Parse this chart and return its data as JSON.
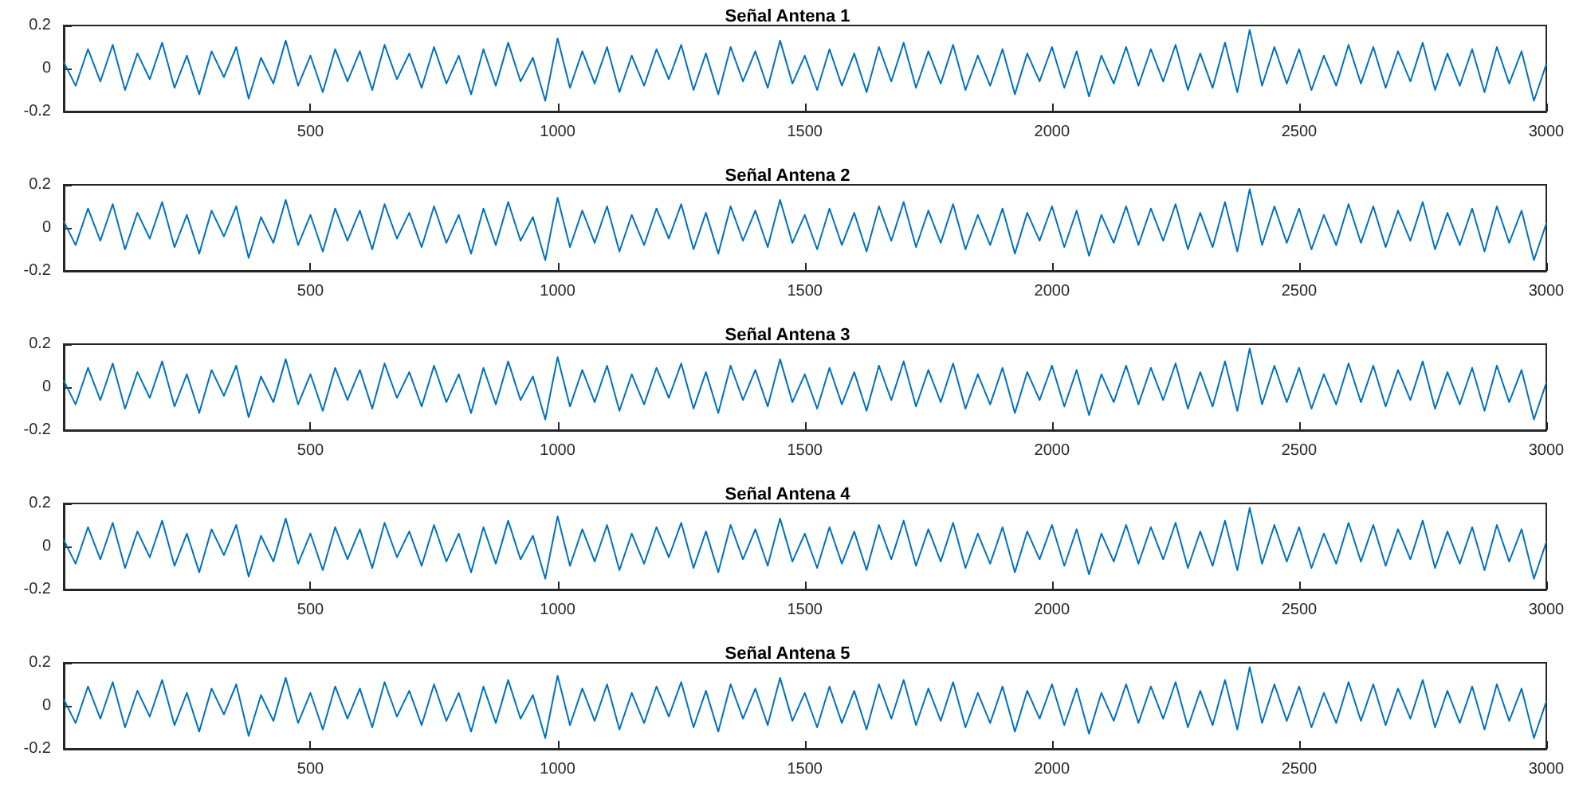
{
  "chart_data": [
    {
      "type": "line",
      "title": "Señal Antena 1",
      "color": "#0072bd",
      "xlim": [
        1,
        3000
      ],
      "xticks": [
        500,
        1000,
        1500,
        2000,
        2500,
        3000
      ],
      "ylim": [
        -0.2,
        0.2
      ],
      "yticks": [
        -0.2,
        0,
        0.2
      ],
      "grid": false,
      "marker": "none",
      "x": [
        1,
        25,
        50,
        75,
        100,
        125,
        150,
        175,
        200,
        225,
        250,
        275,
        300,
        325,
        350,
        375,
        400,
        425,
        450,
        475,
        500,
        525,
        550,
        575,
        600,
        625,
        650,
        675,
        700,
        725,
        750,
        775,
        800,
        825,
        850,
        875,
        900,
        925,
        950,
        975,
        1000,
        1025,
        1050,
        1075,
        1100,
        1125,
        1150,
        1175,
        1200,
        1225,
        1250,
        1275,
        1300,
        1325,
        1350,
        1375,
        1400,
        1425,
        1450,
        1475,
        1500,
        1525,
        1550,
        1575,
        1600,
        1625,
        1650,
        1675,
        1700,
        1725,
        1750,
        1775,
        1800,
        1825,
        1850,
        1875,
        1900,
        1925,
        1950,
        1975,
        2000,
        2025,
        2050,
        2075,
        2100,
        2125,
        2150,
        2175,
        2200,
        2225,
        2250,
        2275,
        2300,
        2325,
        2350,
        2375,
        2400,
        2425,
        2450,
        2475,
        2500,
        2525,
        2550,
        2575,
        2600,
        2625,
        2650,
        2675,
        2700,
        2725,
        2750,
        2775,
        2800,
        2825,
        2850,
        2875,
        2900,
        2925,
        2950,
        2975,
        3000
      ],
      "values": [
        0.03,
        -0.08,
        0.09,
        -0.06,
        0.11,
        -0.1,
        0.07,
        -0.05,
        0.12,
        -0.09,
        0.06,
        -0.12,
        0.08,
        -0.04,
        0.1,
        -0.14,
        0.05,
        -0.07,
        0.13,
        -0.08,
        0.06,
        -0.11,
        0.09,
        -0.06,
        0.08,
        -0.1,
        0.11,
        -0.05,
        0.07,
        -0.09,
        0.1,
        -0.07,
        0.06,
        -0.12,
        0.09,
        -0.08,
        0.12,
        -0.06,
        0.05,
        -0.15,
        0.14,
        -0.09,
        0.08,
        -0.07,
        0.1,
        -0.11,
        0.06,
        -0.08,
        0.09,
        -0.05,
        0.11,
        -0.1,
        0.07,
        -0.12,
        0.1,
        -0.06,
        0.08,
        -0.09,
        0.13,
        -0.07,
        0.06,
        -0.1,
        0.09,
        -0.08,
        0.07,
        -0.11,
        0.1,
        -0.06,
        0.12,
        -0.09,
        0.08,
        -0.07,
        0.11,
        -0.1,
        0.06,
        -0.08,
        0.09,
        -0.12,
        0.07,
        -0.06,
        0.1,
        -0.09,
        0.08,
        -0.13,
        0.06,
        -0.07,
        0.1,
        -0.08,
        0.09,
        -0.06,
        0.11,
        -0.1,
        0.07,
        -0.09,
        0.12,
        -0.11,
        0.18,
        -0.08,
        0.1,
        -0.07,
        0.09,
        -0.1,
        0.06,
        -0.08,
        0.11,
        -0.07,
        0.1,
        -0.09,
        0.08,
        -0.06,
        0.12,
        -0.1,
        0.07,
        -0.08,
        0.09,
        -0.11,
        0.1,
        -0.07,
        0.08,
        -0.15,
        0.02
      ]
    },
    {
      "type": "line",
      "title": "Señal Antena 2",
      "color": "#0072bd",
      "xlim": [
        1,
        3000
      ],
      "xticks": [
        500,
        1000,
        1500,
        2000,
        2500,
        3000
      ],
      "ylim": [
        -0.2,
        0.2
      ],
      "yticks": [
        -0.2,
        0,
        0.2
      ],
      "grid": false,
      "marker": "none",
      "x": [
        1,
        25,
        50,
        75,
        100,
        125,
        150,
        175,
        200,
        225,
        250,
        275,
        300,
        325,
        350,
        375,
        400,
        425,
        450,
        475,
        500,
        525,
        550,
        575,
        600,
        625,
        650,
        675,
        700,
        725,
        750,
        775,
        800,
        825,
        850,
        875,
        900,
        925,
        950,
        975,
        1000,
        1025,
        1050,
        1075,
        1100,
        1125,
        1150,
        1175,
        1200,
        1225,
        1250,
        1275,
        1300,
        1325,
        1350,
        1375,
        1400,
        1425,
        1450,
        1475,
        1500,
        1525,
        1550,
        1575,
        1600,
        1625,
        1650,
        1675,
        1700,
        1725,
        1750,
        1775,
        1800,
        1825,
        1850,
        1875,
        1900,
        1925,
        1950,
        1975,
        2000,
        2025,
        2050,
        2075,
        2100,
        2125,
        2150,
        2175,
        2200,
        2225,
        2250,
        2275,
        2300,
        2325,
        2350,
        2375,
        2400,
        2425,
        2450,
        2475,
        2500,
        2525,
        2550,
        2575,
        2600,
        2625,
        2650,
        2675,
        2700,
        2725,
        2750,
        2775,
        2800,
        2825,
        2850,
        2875,
        2900,
        2925,
        2950,
        2975,
        3000
      ],
      "values": [
        0.03,
        -0.08,
        0.09,
        -0.06,
        0.11,
        -0.1,
        0.07,
        -0.05,
        0.12,
        -0.09,
        0.06,
        -0.12,
        0.08,
        -0.04,
        0.1,
        -0.14,
        0.05,
        -0.07,
        0.13,
        -0.08,
        0.06,
        -0.11,
        0.09,
        -0.06,
        0.08,
        -0.1,
        0.11,
        -0.05,
        0.07,
        -0.09,
        0.1,
        -0.07,
        0.06,
        -0.12,
        0.09,
        -0.08,
        0.12,
        -0.06,
        0.05,
        -0.15,
        0.14,
        -0.09,
        0.08,
        -0.07,
        0.1,
        -0.11,
        0.06,
        -0.08,
        0.09,
        -0.05,
        0.11,
        -0.1,
        0.07,
        -0.12,
        0.1,
        -0.06,
        0.08,
        -0.09,
        0.13,
        -0.07,
        0.06,
        -0.1,
        0.09,
        -0.08,
        0.07,
        -0.11,
        0.1,
        -0.06,
        0.12,
        -0.09,
        0.08,
        -0.07,
        0.11,
        -0.1,
        0.06,
        -0.08,
        0.09,
        -0.12,
        0.07,
        -0.06,
        0.1,
        -0.09,
        0.08,
        -0.13,
        0.06,
        -0.07,
        0.1,
        -0.08,
        0.09,
        -0.06,
        0.11,
        -0.1,
        0.07,
        -0.09,
        0.12,
        -0.11,
        0.18,
        -0.08,
        0.1,
        -0.07,
        0.09,
        -0.1,
        0.06,
        -0.08,
        0.11,
        -0.07,
        0.1,
        -0.09,
        0.08,
        -0.06,
        0.12,
        -0.1,
        0.07,
        -0.08,
        0.09,
        -0.11,
        0.1,
        -0.07,
        0.08,
        -0.15,
        0.02
      ]
    },
    {
      "type": "line",
      "title": "Señal Antena 3",
      "color": "#0072bd",
      "xlim": [
        1,
        3000
      ],
      "xticks": [
        500,
        1000,
        1500,
        2000,
        2500,
        3000
      ],
      "ylim": [
        -0.2,
        0.2
      ],
      "yticks": [
        -0.2,
        0,
        0.2
      ],
      "grid": false,
      "marker": "none",
      "x": [
        1,
        25,
        50,
        75,
        100,
        125,
        150,
        175,
        200,
        225,
        250,
        275,
        300,
        325,
        350,
        375,
        400,
        425,
        450,
        475,
        500,
        525,
        550,
        575,
        600,
        625,
        650,
        675,
        700,
        725,
        750,
        775,
        800,
        825,
        850,
        875,
        900,
        925,
        950,
        975,
        1000,
        1025,
        1050,
        1075,
        1100,
        1125,
        1150,
        1175,
        1200,
        1225,
        1250,
        1275,
        1300,
        1325,
        1350,
        1375,
        1400,
        1425,
        1450,
        1475,
        1500,
        1525,
        1550,
        1575,
        1600,
        1625,
        1650,
        1675,
        1700,
        1725,
        1750,
        1775,
        1800,
        1825,
        1850,
        1875,
        1900,
        1925,
        1950,
        1975,
        2000,
        2025,
        2050,
        2075,
        2100,
        2125,
        2150,
        2175,
        2200,
        2225,
        2250,
        2275,
        2300,
        2325,
        2350,
        2375,
        2400,
        2425,
        2450,
        2475,
        2500,
        2525,
        2550,
        2575,
        2600,
        2625,
        2650,
        2675,
        2700,
        2725,
        2750,
        2775,
        2800,
        2825,
        2850,
        2875,
        2900,
        2925,
        2950,
        2975,
        3000
      ],
      "values": [
        0.03,
        -0.08,
        0.09,
        -0.06,
        0.11,
        -0.1,
        0.07,
        -0.05,
        0.12,
        -0.09,
        0.06,
        -0.12,
        0.08,
        -0.04,
        0.1,
        -0.14,
        0.05,
        -0.07,
        0.13,
        -0.08,
        0.06,
        -0.11,
        0.09,
        -0.06,
        0.08,
        -0.1,
        0.11,
        -0.05,
        0.07,
        -0.09,
        0.1,
        -0.07,
        0.06,
        -0.12,
        0.09,
        -0.08,
        0.12,
        -0.06,
        0.05,
        -0.15,
        0.14,
        -0.09,
        0.08,
        -0.07,
        0.1,
        -0.11,
        0.06,
        -0.08,
        0.09,
        -0.05,
        0.11,
        -0.1,
        0.07,
        -0.12,
        0.1,
        -0.06,
        0.08,
        -0.09,
        0.13,
        -0.07,
        0.06,
        -0.1,
        0.09,
        -0.08,
        0.07,
        -0.11,
        0.1,
        -0.06,
        0.12,
        -0.09,
        0.08,
        -0.07,
        0.11,
        -0.1,
        0.06,
        -0.08,
        0.09,
        -0.12,
        0.07,
        -0.06,
        0.1,
        -0.09,
        0.08,
        -0.13,
        0.06,
        -0.07,
        0.1,
        -0.08,
        0.09,
        -0.06,
        0.11,
        -0.1,
        0.07,
        -0.09,
        0.12,
        -0.11,
        0.18,
        -0.08,
        0.1,
        -0.07,
        0.09,
        -0.1,
        0.06,
        -0.08,
        0.11,
        -0.07,
        0.1,
        -0.09,
        0.08,
        -0.06,
        0.12,
        -0.1,
        0.07,
        -0.08,
        0.09,
        -0.11,
        0.1,
        -0.07,
        0.08,
        -0.15,
        0.02
      ]
    },
    {
      "type": "line",
      "title": "Señal Antena 4",
      "color": "#0072bd",
      "xlim": [
        1,
        3000
      ],
      "xticks": [
        500,
        1000,
        1500,
        2000,
        2500,
        3000
      ],
      "ylim": [
        -0.2,
        0.2
      ],
      "yticks": [
        -0.2,
        0,
        0.2
      ],
      "grid": false,
      "marker": "none",
      "x": [
        1,
        25,
        50,
        75,
        100,
        125,
        150,
        175,
        200,
        225,
        250,
        275,
        300,
        325,
        350,
        375,
        400,
        425,
        450,
        475,
        500,
        525,
        550,
        575,
        600,
        625,
        650,
        675,
        700,
        725,
        750,
        775,
        800,
        825,
        850,
        875,
        900,
        925,
        950,
        975,
        1000,
        1025,
        1050,
        1075,
        1100,
        1125,
        1150,
        1175,
        1200,
        1225,
        1250,
        1275,
        1300,
        1325,
        1350,
        1375,
        1400,
        1425,
        1450,
        1475,
        1500,
        1525,
        1550,
        1575,
        1600,
        1625,
        1650,
        1675,
        1700,
        1725,
        1750,
        1775,
        1800,
        1825,
        1850,
        1875,
        1900,
        1925,
        1950,
        1975,
        2000,
        2025,
        2050,
        2075,
        2100,
        2125,
        2150,
        2175,
        2200,
        2225,
        2250,
        2275,
        2300,
        2325,
        2350,
        2375,
        2400,
        2425,
        2450,
        2475,
        2500,
        2525,
        2550,
        2575,
        2600,
        2625,
        2650,
        2675,
        2700,
        2725,
        2750,
        2775,
        2800,
        2825,
        2850,
        2875,
        2900,
        2925,
        2950,
        2975,
        3000
      ],
      "values": [
        0.03,
        -0.08,
        0.09,
        -0.06,
        0.11,
        -0.1,
        0.07,
        -0.05,
        0.12,
        -0.09,
        0.06,
        -0.12,
        0.08,
        -0.04,
        0.1,
        -0.14,
        0.05,
        -0.07,
        0.13,
        -0.08,
        0.06,
        -0.11,
        0.09,
        -0.06,
        0.08,
        -0.1,
        0.11,
        -0.05,
        0.07,
        -0.09,
        0.1,
        -0.07,
        0.06,
        -0.12,
        0.09,
        -0.08,
        0.12,
        -0.06,
        0.05,
        -0.15,
        0.14,
        -0.09,
        0.08,
        -0.07,
        0.1,
        -0.11,
        0.06,
        -0.08,
        0.09,
        -0.05,
        0.11,
        -0.1,
        0.07,
        -0.12,
        0.1,
        -0.06,
        0.08,
        -0.09,
        0.13,
        -0.07,
        0.06,
        -0.1,
        0.09,
        -0.08,
        0.07,
        -0.11,
        0.1,
        -0.06,
        0.12,
        -0.09,
        0.08,
        -0.07,
        0.11,
        -0.1,
        0.06,
        -0.08,
        0.09,
        -0.12,
        0.07,
        -0.06,
        0.1,
        -0.09,
        0.08,
        -0.13,
        0.06,
        -0.07,
        0.1,
        -0.08,
        0.09,
        -0.06,
        0.11,
        -0.1,
        0.07,
        -0.09,
        0.12,
        -0.11,
        0.18,
        -0.08,
        0.1,
        -0.07,
        0.09,
        -0.1,
        0.06,
        -0.08,
        0.11,
        -0.07,
        0.1,
        -0.09,
        0.08,
        -0.06,
        0.12,
        -0.1,
        0.07,
        -0.08,
        0.09,
        -0.11,
        0.1,
        -0.07,
        0.08,
        -0.15,
        0.02
      ]
    },
    {
      "type": "line",
      "title": "Señal Antena 5",
      "color": "#0072bd",
      "xlim": [
        1,
        3000
      ],
      "xticks": [
        500,
        1000,
        1500,
        2000,
        2500,
        3000
      ],
      "ylim": [
        -0.2,
        0.2
      ],
      "yticks": [
        -0.2,
        0,
        0.2
      ],
      "grid": false,
      "marker": "none",
      "x": [
        1,
        25,
        50,
        75,
        100,
        125,
        150,
        175,
        200,
        225,
        250,
        275,
        300,
        325,
        350,
        375,
        400,
        425,
        450,
        475,
        500,
        525,
        550,
        575,
        600,
        625,
        650,
        675,
        700,
        725,
        750,
        775,
        800,
        825,
        850,
        875,
        900,
        925,
        950,
        975,
        1000,
        1025,
        1050,
        1075,
        1100,
        1125,
        1150,
        1175,
        1200,
        1225,
        1250,
        1275,
        1300,
        1325,
        1350,
        1375,
        1400,
        1425,
        1450,
        1475,
        1500,
        1525,
        1550,
        1575,
        1600,
        1625,
        1650,
        1675,
        1700,
        1725,
        1750,
        1775,
        1800,
        1825,
        1850,
        1875,
        1900,
        1925,
        1950,
        1975,
        2000,
        2025,
        2050,
        2075,
        2100,
        2125,
        2150,
        2175,
        2200,
        2225,
        2250,
        2275,
        2300,
        2325,
        2350,
        2375,
        2400,
        2425,
        2450,
        2475,
        2500,
        2525,
        2550,
        2575,
        2600,
        2625,
        2650,
        2675,
        2700,
        2725,
        2750,
        2775,
        2800,
        2825,
        2850,
        2875,
        2900,
        2925,
        2950,
        2975,
        3000
      ],
      "values": [
        0.03,
        -0.08,
        0.09,
        -0.06,
        0.11,
        -0.1,
        0.07,
        -0.05,
        0.12,
        -0.09,
        0.06,
        -0.12,
        0.08,
        -0.04,
        0.1,
        -0.14,
        0.05,
        -0.07,
        0.13,
        -0.08,
        0.06,
        -0.11,
        0.09,
        -0.06,
        0.08,
        -0.1,
        0.11,
        -0.05,
        0.07,
        -0.09,
        0.1,
        -0.07,
        0.06,
        -0.12,
        0.09,
        -0.08,
        0.12,
        -0.06,
        0.05,
        -0.15,
        0.14,
        -0.09,
        0.08,
        -0.07,
        0.1,
        -0.11,
        0.06,
        -0.08,
        0.09,
        -0.05,
        0.11,
        -0.1,
        0.07,
        -0.12,
        0.1,
        -0.06,
        0.08,
        -0.09,
        0.13,
        -0.07,
        0.06,
        -0.1,
        0.09,
        -0.08,
        0.07,
        -0.11,
        0.1,
        -0.06,
        0.12,
        -0.09,
        0.08,
        -0.07,
        0.11,
        -0.1,
        0.06,
        -0.08,
        0.09,
        -0.12,
        0.07,
        -0.06,
        0.1,
        -0.09,
        0.08,
        -0.13,
        0.06,
        -0.07,
        0.1,
        -0.08,
        0.09,
        -0.06,
        0.11,
        -0.1,
        0.07,
        -0.09,
        0.12,
        -0.11,
        0.18,
        -0.08,
        0.1,
        -0.07,
        0.09,
        -0.1,
        0.06,
        -0.08,
        0.11,
        -0.07,
        0.1,
        -0.09,
        0.08,
        -0.06,
        0.12,
        -0.1,
        0.07,
        -0.08,
        0.09,
        -0.11,
        0.1,
        -0.07,
        0.08,
        -0.15,
        0.02
      ]
    }
  ]
}
